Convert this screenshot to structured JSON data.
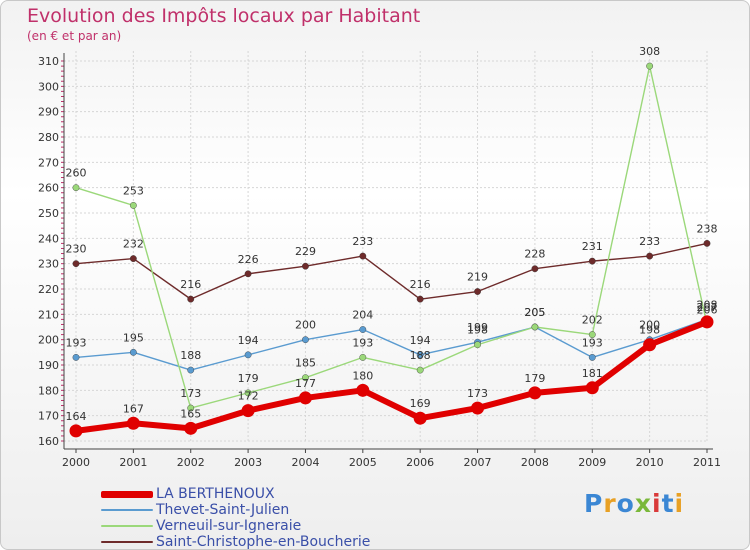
{
  "title": "Evolution des Impôts locaux par Habitant",
  "subtitle": "(en € et par an)",
  "logo": {
    "text": "Proxiti",
    "colors": [
      "#3b87d4",
      "#e8a024",
      "#3b87d4",
      "#7ab83a",
      "#d93a3a",
      "#3b87d4",
      "#e8a024"
    ]
  },
  "chart_data": {
    "type": "line",
    "x": [
      "2000",
      "2001",
      "2002",
      "2003",
      "2004",
      "2005",
      "2006",
      "2007",
      "2008",
      "2009",
      "2010",
      "2011"
    ],
    "ylim": [
      160,
      310
    ],
    "yticks": [
      160,
      170,
      180,
      190,
      200,
      210,
      220,
      230,
      240,
      250,
      260,
      270,
      280,
      290,
      300,
      310
    ],
    "grid": true,
    "legend_position": "bottom",
    "series": [
      {
        "name": "Saint-Christophe-en-Boucherie",
        "color": "#6e2b2b",
        "values": [
          230,
          232,
          216,
          226,
          229,
          233,
          216,
          219,
          228,
          231,
          233,
          238
        ],
        "labels": [
          "230",
          "232",
          "216",
          "226",
          "229",
          "233",
          "216",
          "219",
          "228",
          "231",
          "233",
          "238"
        ]
      },
      {
        "name": "Thevet-Saint-Julien",
        "color": "#5a9bd0",
        "values": [
          193,
          195,
          188,
          194,
          200,
          204,
          194,
          199,
          205,
          193,
          200,
          208
        ],
        "labels": [
          "193",
          "195",
          "188",
          "194",
          "200",
          "204",
          "194",
          "199",
          "205",
          "193",
          "200",
          "208"
        ]
      },
      {
        "name": "Verneuil-sur-Igneraie",
        "color": "#9bd87a",
        "values": [
          260,
          253,
          173,
          179,
          185,
          193,
          188,
          198,
          205,
          202,
          308,
          206
        ],
        "labels": [
          "260",
          "253",
          "173",
          "179",
          "185",
          "193",
          "188",
          "198",
          "205",
          "202",
          "308",
          "206"
        ]
      },
      {
        "name": "LA BERTHENOUX",
        "color": "#e00000",
        "values": [
          164,
          167,
          165,
          172,
          177,
          180,
          169,
          173,
          179,
          181,
          198,
          207
        ],
        "labels": [
          "164",
          "167",
          "165",
          "172",
          "177",
          "180",
          "169",
          "173",
          "179",
          "181",
          "198",
          "207"
        ]
      }
    ],
    "legend": [
      {
        "name": "LA BERTHENOUX",
        "color": "#e00000",
        "thick": true
      },
      {
        "name": "Thevet-Saint-Julien",
        "color": "#5a9bd0",
        "thick": false
      },
      {
        "name": "Verneuil-sur-Igneraie",
        "color": "#9bd87a",
        "thick": false
      },
      {
        "name": "Saint-Christophe-en-Boucherie",
        "color": "#6e2b2b",
        "thick": false
      }
    ]
  }
}
